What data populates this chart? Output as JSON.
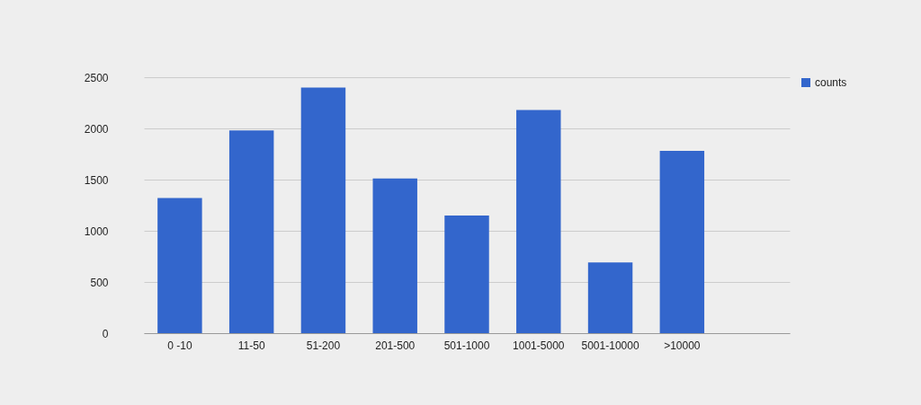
{
  "chart_data": {
    "type": "bar",
    "categories": [
      "0 -10",
      "11-50",
      "51-200",
      "201-500",
      "501-1000",
      "1001-5000",
      "5001-10000",
      ">10000",
      null
    ],
    "series": [
      {
        "name": "counts",
        "color": "#3366cc",
        "values": [
          1320,
          1980,
          2400,
          1510,
          1150,
          2180,
          690,
          1780,
          null
        ]
      }
    ],
    "ylim": [
      0,
      2500
    ],
    "yticks": [
      0,
      500,
      1000,
      1500,
      2000,
      2500
    ],
    "grid": "y",
    "legend": "top right"
  }
}
